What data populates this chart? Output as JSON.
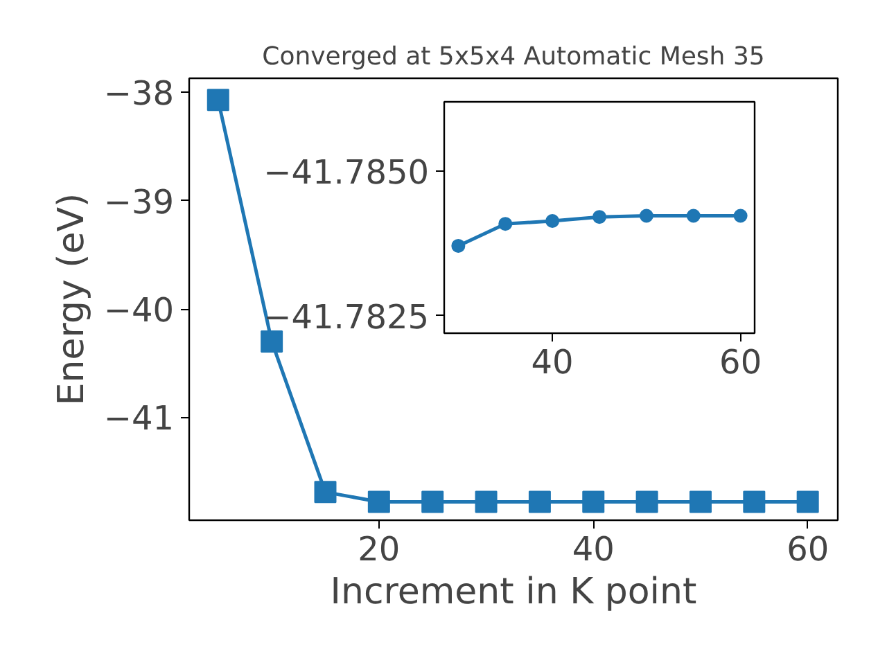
{
  "chart_data": [
    {
      "type": "line",
      "title": "Converged at 5x5x4 Automatic Mesh 35",
      "xlabel": "Increment in K point",
      "ylabel": "Energy (eV)",
      "marker": "square",
      "line_style": "solid",
      "grid": false,
      "x": [
        5,
        10,
        15,
        20,
        25,
        30,
        35,
        40,
        45,
        50,
        55,
        60
      ],
      "series": [
        {
          "color": "#1f77b4",
          "values": [
            -38.07,
            -40.3,
            -41.69,
            -41.78,
            -41.78,
            -41.78,
            -41.78,
            -41.78,
            -41.78,
            -41.78,
            -41.78,
            -41.78
          ]
        }
      ],
      "xlim": [
        2.3,
        62.8
      ],
      "ylim": [
        -41.95,
        -37.87
      ],
      "xticks": [
        20,
        40,
        60
      ],
      "yticks": [
        {
          "value": -41,
          "label": "−41"
        },
        {
          "value": -40,
          "label": "−40"
        },
        {
          "value": -39,
          "label": "−39"
        },
        {
          "value": -38,
          "label": "−38"
        }
      ]
    },
    {
      "type": "line",
      "marker": "circle",
      "line_style": "solid",
      "grid": false,
      "x": [
        30,
        35,
        40,
        45,
        50,
        55,
        60
      ],
      "series": [
        {
          "color": "#1f77b4",
          "values": [
            -41.78371,
            -41.78409,
            -41.78414,
            -41.78421,
            -41.78423,
            -41.78423,
            -41.78423
          ]
        }
      ],
      "xlim": [
        28.5,
        61.5
      ],
      "ylim": [
        -41.7822,
        -41.7862
      ],
      "xticks": [
        40,
        60
      ],
      "yticks": [
        {
          "value": -41.785,
          "label": "−41.7850"
        },
        {
          "value": -41.7825,
          "label": "−41.7825"
        }
      ]
    }
  ]
}
